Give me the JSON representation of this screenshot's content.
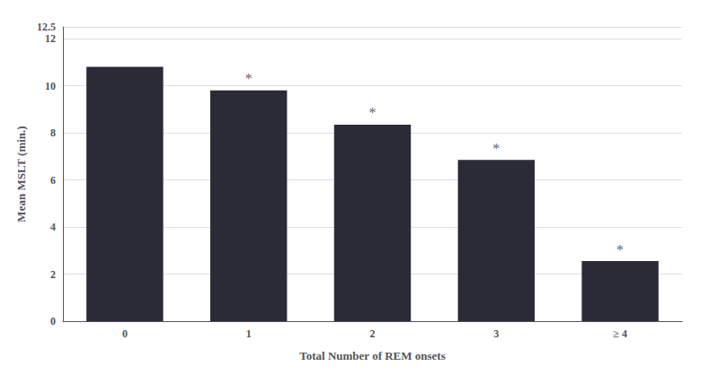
{
  "chart_data": {
    "type": "bar",
    "categories": [
      "0",
      "1",
      "2",
      "3",
      "≥ 4"
    ],
    "values": [
      10.8,
      9.8,
      8.35,
      6.85,
      2.55
    ],
    "color": "#2b2b38",
    "xlabel": "Total Number of REM onsets",
    "ylabel": "Mean MSLT (min.)",
    "ylim": [
      0,
      12.5
    ],
    "yticks": [
      0,
      2,
      4,
      6,
      8,
      10,
      12
    ],
    "grid": true,
    "annotations": [
      {
        "text": "*",
        "category": "1"
      },
      {
        "text": "*",
        "category": "2"
      },
      {
        "text": "*",
        "category": "3"
      },
      {
        "text": "*",
        "category": "≥ 4"
      }
    ]
  }
}
